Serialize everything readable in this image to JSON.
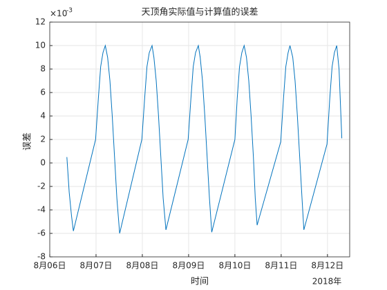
{
  "chart_data": {
    "type": "line",
    "title": "天顶角实际值与计算值的误差",
    "xlabel": "时间",
    "ylabel": "误差",
    "x_secondary_label": "2018年",
    "y_multiplier": {
      "base": "×10",
      "power": "-3"
    },
    "grid": true,
    "xlim": [
      6,
      12.48
    ],
    "ylim": [
      -8,
      12
    ],
    "xticks": [
      {
        "value": 6,
        "label": "8月06日"
      },
      {
        "value": 7,
        "label": "8月07日"
      },
      {
        "value": 8,
        "label": "8月08日"
      },
      {
        "value": 9,
        "label": "8月09日"
      },
      {
        "value": 10,
        "label": "8月10日"
      },
      {
        "value": 11,
        "label": "8月11日"
      },
      {
        "value": 12,
        "label": "8月12日"
      }
    ],
    "yticks": [
      -8,
      -6,
      -4,
      -2,
      0,
      2,
      4,
      6,
      8,
      10,
      12
    ],
    "series": [
      {
        "color": "#0072bd",
        "x": [
          6.37,
          6.42,
          6.47,
          6.51,
          6.99,
          7.05,
          7.1,
          7.15,
          7.2,
          7.25,
          7.3,
          7.35,
          7.4,
          7.45,
          7.51,
          7.99,
          8.05,
          8.1,
          8.15,
          8.21,
          8.25,
          8.3,
          8.35,
          8.4,
          8.45,
          8.51,
          8.99,
          9.05,
          9.1,
          9.15,
          9.21,
          9.25,
          9.3,
          9.35,
          9.4,
          9.45,
          9.5,
          10.0,
          10.05,
          10.1,
          10.15,
          10.2,
          10.25,
          10.3,
          10.35,
          10.4,
          10.44,
          10.48,
          10.99,
          11.05,
          11.1,
          11.15,
          11.19,
          11.25,
          11.3,
          11.35,
          11.4,
          11.45,
          11.49,
          11.99,
          12.05,
          12.1,
          12.15,
          12.2,
          12.25,
          12.31
        ],
        "values": [
          0.5,
          -2.5,
          -4.5,
          -5.8,
          2,
          5.5,
          8.2,
          9.4,
          10,
          9,
          7,
          4,
          0.5,
          -3,
          -6,
          2,
          5.5,
          8.2,
          9.4,
          10,
          9,
          7,
          4,
          0.5,
          -3,
          -5.7,
          2,
          5.5,
          8.2,
          9.4,
          10,
          9,
          7,
          4,
          0.5,
          -3,
          -5.9,
          2,
          5.5,
          8.2,
          9.4,
          10,
          9,
          7,
          4,
          0.5,
          -3,
          -5.3,
          1.8,
          5.5,
          8.2,
          9.4,
          10,
          9,
          7,
          4,
          0.5,
          -3,
          -5.7,
          1.6,
          5.5,
          8.2,
          9.4,
          10,
          8,
          2.1
        ]
      }
    ]
  }
}
